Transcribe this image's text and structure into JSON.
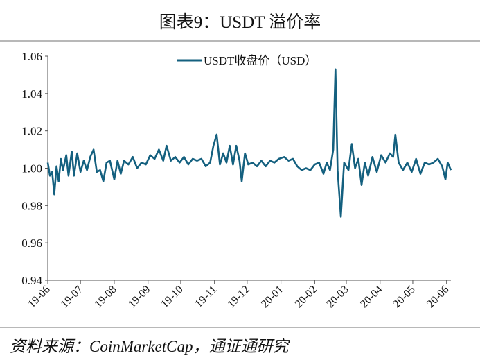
{
  "title": "图表9：USDT 溢价率",
  "source": "资料来源：CoinMarketCap，通证通研究",
  "chart_data": {
    "type": "line",
    "title": "图表9：USDT 溢价率",
    "xlabel": "",
    "ylabel": "",
    "ylim": [
      0.94,
      1.06
    ],
    "yticks": [
      "0.94",
      "0.96",
      "0.98",
      "1.00",
      "1.02",
      "1.04",
      "1.06"
    ],
    "xticks": [
      "19-06",
      "19-07",
      "19-08",
      "19-09",
      "19-10",
      "19-11",
      "19-12",
      "20-01",
      "20-02",
      "20-03",
      "20-04",
      "20-05",
      "20-06"
    ],
    "xlim": [
      "2019-06-01",
      "2020-06-05"
    ],
    "grid": false,
    "legend": "top-center",
    "color": "#14607f",
    "series": [
      {
        "name": "USDT收盘价（USD）",
        "x": [
          "2019-06-01",
          "2019-06-03",
          "2019-06-05",
          "2019-06-07",
          "2019-06-09",
          "2019-06-11",
          "2019-06-13",
          "2019-06-15",
          "2019-06-18",
          "2019-06-20",
          "2019-06-23",
          "2019-06-25",
          "2019-06-28",
          "2019-07-01",
          "2019-07-04",
          "2019-07-07",
          "2019-07-10",
          "2019-07-13",
          "2019-07-16",
          "2019-07-19",
          "2019-07-22",
          "2019-07-25",
          "2019-07-28",
          "2019-08-01",
          "2019-08-04",
          "2019-08-07",
          "2019-08-10",
          "2019-08-14",
          "2019-08-18",
          "2019-08-22",
          "2019-08-26",
          "2019-08-30",
          "2019-09-03",
          "2019-09-07",
          "2019-09-11",
          "2019-09-15",
          "2019-09-18",
          "2019-09-22",
          "2019-09-26",
          "2019-09-30",
          "2019-10-04",
          "2019-10-08",
          "2019-10-12",
          "2019-10-16",
          "2019-10-20",
          "2019-10-24",
          "2019-10-28",
          "2019-10-31",
          "2019-11-03",
          "2019-11-06",
          "2019-11-09",
          "2019-11-12",
          "2019-11-15",
          "2019-11-18",
          "2019-11-21",
          "2019-11-24",
          "2019-11-26",
          "2019-11-29",
          "2019-12-02",
          "2019-12-06",
          "2019-12-10",
          "2019-12-14",
          "2019-12-18",
          "2019-12-22",
          "2019-12-26",
          "2019-12-30",
          "2020-01-04",
          "2020-01-08",
          "2020-01-12",
          "2020-01-16",
          "2020-01-20",
          "2020-01-24",
          "2020-01-28",
          "2020-02-01",
          "2020-02-05",
          "2020-02-09",
          "2020-02-12",
          "2020-02-15",
          "2020-02-18",
          "2020-02-20",
          "2020-02-22",
          "2020-02-25",
          "2020-02-28",
          "2020-03-03",
          "2020-03-06",
          "2020-03-09",
          "2020-03-12",
          "2020-03-15",
          "2020-03-18",
          "2020-03-21",
          "2020-03-25",
          "2020-03-29",
          "2020-04-02",
          "2020-04-06",
          "2020-04-10",
          "2020-04-13",
          "2020-04-15",
          "2020-04-18",
          "2020-04-22",
          "2020-04-26",
          "2020-04-30",
          "2020-05-04",
          "2020-05-08",
          "2020-05-12",
          "2020-05-16",
          "2020-05-20",
          "2020-05-24",
          "2020-05-28",
          "2020-05-31",
          "2020-06-02",
          "2020-06-05"
        ],
        "y": [
          1.003,
          0.996,
          0.998,
          0.986,
          1.001,
          0.993,
          1.005,
          0.999,
          1.007,
          0.996,
          1.009,
          0.996,
          1.008,
          0.998,
          1.004,
          0.999,
          1.006,
          1.01,
          0.998,
          0.999,
          0.993,
          1.003,
          1.004,
          0.994,
          1.004,
          0.997,
          1.004,
          1.002,
          1.006,
          1.0,
          1.003,
          1.002,
          1.007,
          1.005,
          1.01,
          1.004,
          1.012,
          1.004,
          1.006,
          1.003,
          1.006,
          1.002,
          1.005,
          1.004,
          1.005,
          1.001,
          1.003,
          1.012,
          1.018,
          1.002,
          1.008,
          1.003,
          1.012,
          1.002,
          1.012,
          1.004,
          0.993,
          1.008,
          1.002,
          1.003,
          1.001,
          1.004,
          1.001,
          1.004,
          1.003,
          1.005,
          1.006,
          1.004,
          1.005,
          1.001,
          0.999,
          1.0,
          0.999,
          1.002,
          1.003,
          0.997,
          1.003,
          0.999,
          1.01,
          1.053,
          0.999,
          0.974,
          1.003,
          0.999,
          1.013,
          1.0,
          1.005,
          0.991,
          1.003,
          0.996,
          1.006,
          0.998,
          1.007,
          1.003,
          1.008,
          1.006,
          1.018,
          1.003,
          0.999,
          1.003,
          0.998,
          1.005,
          0.997,
          1.003,
          1.002,
          1.003,
          1.005,
          1.001,
          0.994,
          1.003,
          0.999
        ]
      }
    ]
  }
}
